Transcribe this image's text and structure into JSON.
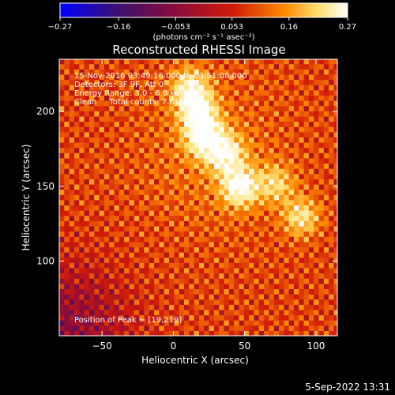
{
  "chart_data": {
    "type": "heatmap",
    "title": "Reconstructed RHESSI Image",
    "xlabel": "Heliocentric X (arcsec)",
    "ylabel": "Heliocentric Y (arcsec)",
    "xlim": [
      -80,
      115
    ],
    "ylim": [
      50,
      235
    ],
    "xticks": [
      -50,
      0,
      50,
      100
    ],
    "yticks": [
      100,
      150,
      200
    ],
    "colorbar": {
      "min": -0.27,
      "max": 0.27,
      "ticks": [
        -0.27,
        -0.16,
        -0.053,
        0.053,
        0.16,
        0.27
      ],
      "tick_labels": [
        "−0.27",
        "−0.16",
        "−0.053",
        "0.053",
        "0.16",
        "0.27"
      ],
      "unit_label": "(photons cm⁻² s⁻¹ asec⁻²)",
      "colormap": [
        "#0000ff",
        "#3c1070",
        "#8a0c3c",
        "#d01a08",
        "#ff8a00",
        "#ffe070",
        "#ffffff"
      ]
    },
    "peak": [
      19,
      219
    ],
    "sources": [
      {
        "x": 20,
        "y": 182,
        "value": 0.26
      },
      {
        "x": 15,
        "y": 200,
        "value": 0.22
      },
      {
        "x": 35,
        "y": 170,
        "value": 0.2
      },
      {
        "x": 45,
        "y": 148,
        "value": 0.24
      },
      {
        "x": 10,
        "y": 215,
        "value": 0.18
      },
      {
        "x": 88,
        "y": 128,
        "value": 0.17
      },
      {
        "x": 70,
        "y": 150,
        "value": 0.14
      }
    ],
    "annotations": [
      "15-Nov-2016 03:49:16.000 to 03:51:08.000",
      "Detectors: 3F 9F, Att 0",
      "Energy Range: 3.0 - 6.0 keV",
      "Clean     Total counts: 7.61E+03",
      "Position of Peak = [19,219]"
    ]
  },
  "footer": {
    "date": "5-Sep-2022 13:31"
  }
}
